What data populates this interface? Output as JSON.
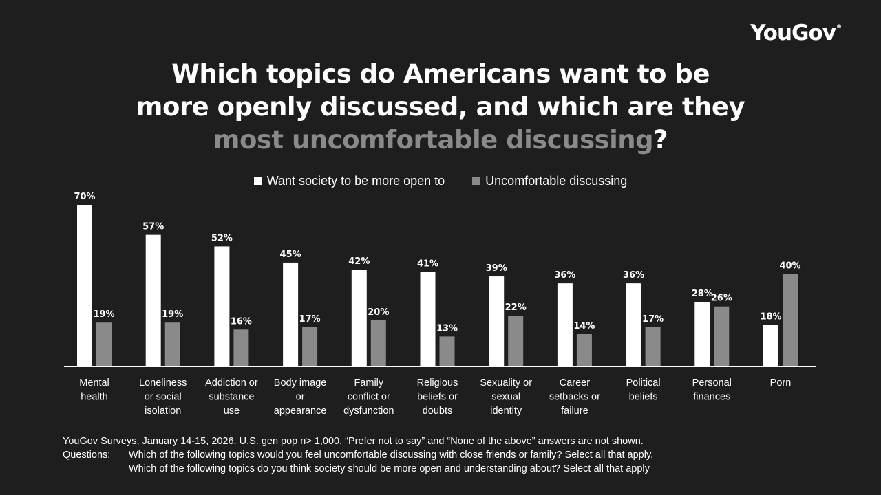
{
  "logo": {
    "text": "YouGov",
    "mark": "®"
  },
  "title": {
    "line1": "Which topics do Americans want to be",
    "line2": "more openly discussed, and which are they",
    "line3_grey": "most uncomfortable discussing",
    "line3_end": "?"
  },
  "legend": {
    "open": "Want society to be more open to",
    "uncomfortable": "Uncomfortable discussing"
  },
  "colors": {
    "open": "#ffffff",
    "uncomfortable": "#8a8a8a",
    "background": "#1e1e1e"
  },
  "chart_data": {
    "type": "bar",
    "title": "Which topics do Americans want to be more openly discussed, and which are they most uncomfortable discussing?",
    "categories": [
      [
        "Mental",
        "health"
      ],
      [
        "Loneliness",
        "or social",
        "isolation"
      ],
      [
        "Addiction or",
        "substance",
        "use"
      ],
      [
        "Body image",
        "or",
        "appearance"
      ],
      [
        "Family",
        "conflict or",
        "dysfunction"
      ],
      [
        "Religious",
        "beliefs or",
        "doubts"
      ],
      [
        "Sexuality or",
        "sexual",
        "identity"
      ],
      [
        "Career",
        "setbacks or",
        "failure"
      ],
      [
        "Political",
        "beliefs"
      ],
      [
        "Personal",
        "finances"
      ],
      [
        "Porn"
      ]
    ],
    "series": [
      {
        "name": "Want society to be more open to",
        "values": [
          70,
          57,
          52,
          45,
          42,
          41,
          39,
          36,
          36,
          28,
          18
        ]
      },
      {
        "name": "Uncomfortable discussing",
        "values": [
          19,
          19,
          16,
          17,
          20,
          13,
          22,
          14,
          17,
          26,
          40
        ]
      }
    ],
    "value_suffix": "%",
    "ylim": [
      0,
      70
    ],
    "legend_position": "top-center",
    "grid": false
  },
  "footnote": {
    "source": "YouGov Surveys, January 14-15, 2026. U.S. gen pop n> 1,000. “Prefer not to say” and “None of the above” answers are not shown.",
    "questions_label": "Questions:",
    "question1": "Which of the following topics would you feel uncomfortable discussing with close friends or family? Select all that apply.",
    "question2": "Which of the following topics do you think society should be more open and understanding about? Select all that apply"
  }
}
